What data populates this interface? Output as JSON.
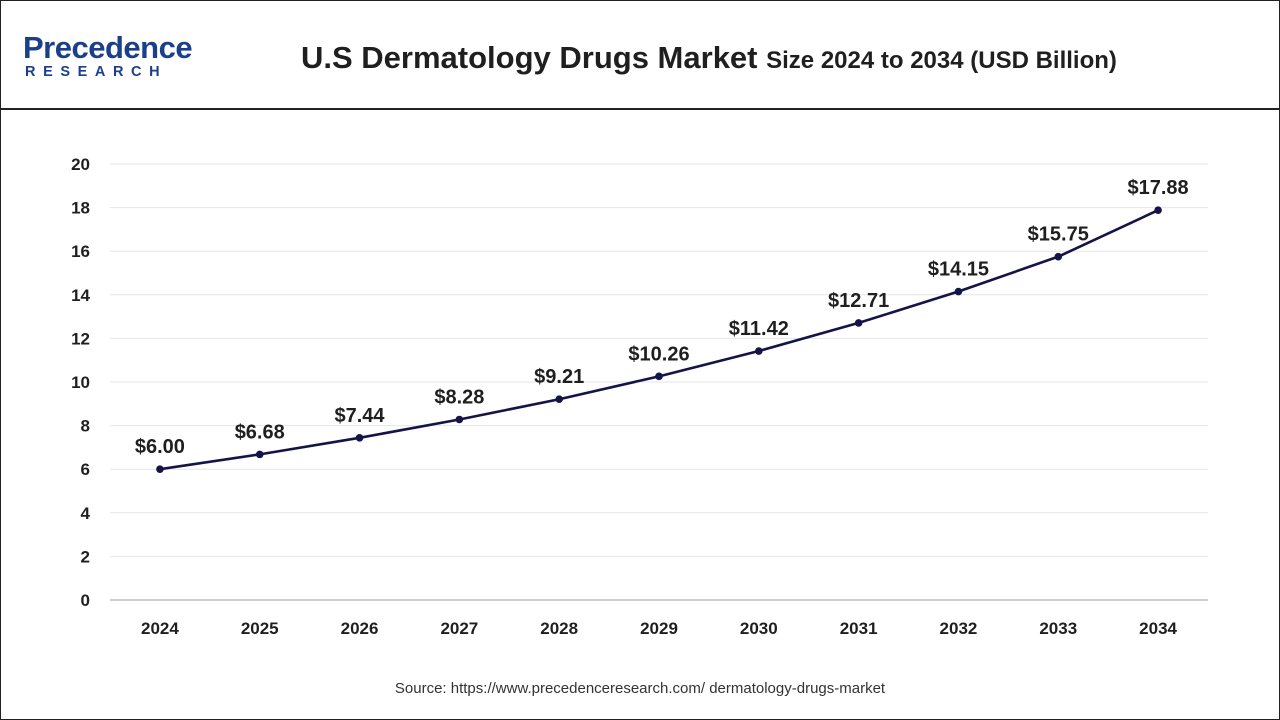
{
  "header": {
    "logo_word": "Precedence",
    "logo_sub": "RESEARCH",
    "title_main": "U.S Dermatology Drugs Market",
    "title_sub": "Size 2024 to 2034 (USD Billion)"
  },
  "colors": {
    "line": "#141447",
    "grid": "#e6e6e6",
    "axis": "#bfbfbf",
    "text": "#1f1f1f",
    "logo": "#1c3f8c"
  },
  "chart_data": {
    "type": "line",
    "title": "U.S Dermatology Drugs Market Size 2024 to 2034 (USD Billion)",
    "xlabel": "",
    "ylabel": "",
    "categories": [
      "2024",
      "2025",
      "2026",
      "2027",
      "2028",
      "2029",
      "2030",
      "2031",
      "2032",
      "2033",
      "2034"
    ],
    "values": [
      6.0,
      6.68,
      7.44,
      8.28,
      9.21,
      10.26,
      11.42,
      12.71,
      14.15,
      15.75,
      17.88
    ],
    "data_labels": [
      "$6.00",
      "$6.68",
      "$7.44",
      "$8.28",
      "$9.21",
      "$10.26",
      "$11.42",
      "$12.71",
      "$14.15",
      "$15.75",
      "$17.88"
    ],
    "ylim": [
      0,
      20
    ],
    "yticks": [
      "0",
      "2",
      "4",
      "6",
      "8",
      "10",
      "12",
      "14",
      "16",
      "18",
      "20"
    ],
    "grid": true,
    "legend": "none"
  },
  "source": "Source: https://www.precedenceresearch.com/ dermatology-drugs-market"
}
